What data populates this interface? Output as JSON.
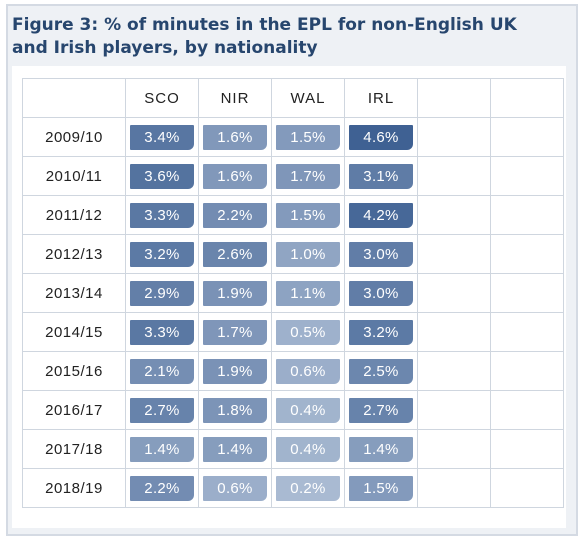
{
  "chart_data": {
    "type": "heatmap",
    "title": "Figure 3: % of minutes in the EPL for non-English UK and Irish players, by nationality",
    "columns": [
      "SCO",
      "NIR",
      "WAL",
      "IRL"
    ],
    "rows": [
      "2009/10",
      "2010/11",
      "2011/12",
      "2012/13",
      "2013/14",
      "2014/15",
      "2015/16",
      "2016/17",
      "2017/18",
      "2018/19"
    ],
    "values": [
      [
        3.4,
        1.6,
        1.5,
        4.6
      ],
      [
        3.6,
        1.6,
        1.7,
        3.1
      ],
      [
        3.3,
        2.2,
        1.5,
        4.2
      ],
      [
        3.2,
        2.6,
        1.0,
        3.0
      ],
      [
        2.9,
        1.9,
        1.1,
        3.0
      ],
      [
        3.3,
        1.7,
        0.5,
        3.2
      ],
      [
        2.1,
        1.9,
        0.6,
        2.5
      ],
      [
        2.7,
        1.8,
        0.4,
        2.7
      ],
      [
        1.4,
        1.4,
        0.4,
        1.4
      ],
      [
        2.2,
        0.6,
        0.2,
        1.5
      ]
    ],
    "labels": [
      [
        "3.4%",
        "1.6%",
        "1.5%",
        "4.6%"
      ],
      [
        "3.6%",
        "1.6%",
        "1.7%",
        "3.1%"
      ],
      [
        "3.3%",
        "2.2%",
        "1.5%",
        "4.2%"
      ],
      [
        "3.2%",
        "2.6%",
        "1.0%",
        "3.0%"
      ],
      [
        "2.9%",
        "1.9%",
        "1.1%",
        "3.0%"
      ],
      [
        "3.3%",
        "1.7%",
        "0.5%",
        "3.2%"
      ],
      [
        "2.1%",
        "1.9%",
        "0.6%",
        "2.5%"
      ],
      [
        "2.7%",
        "1.8%",
        "0.4%",
        "2.7%"
      ],
      [
        "1.4%",
        "1.4%",
        "0.4%",
        "1.4%"
      ],
      [
        "2.2%",
        "0.6%",
        "0.2%",
        "1.5%"
      ]
    ],
    "color_low": "#a9bad2",
    "color_high": "#3f6193",
    "title_color": "#27466e"
  }
}
